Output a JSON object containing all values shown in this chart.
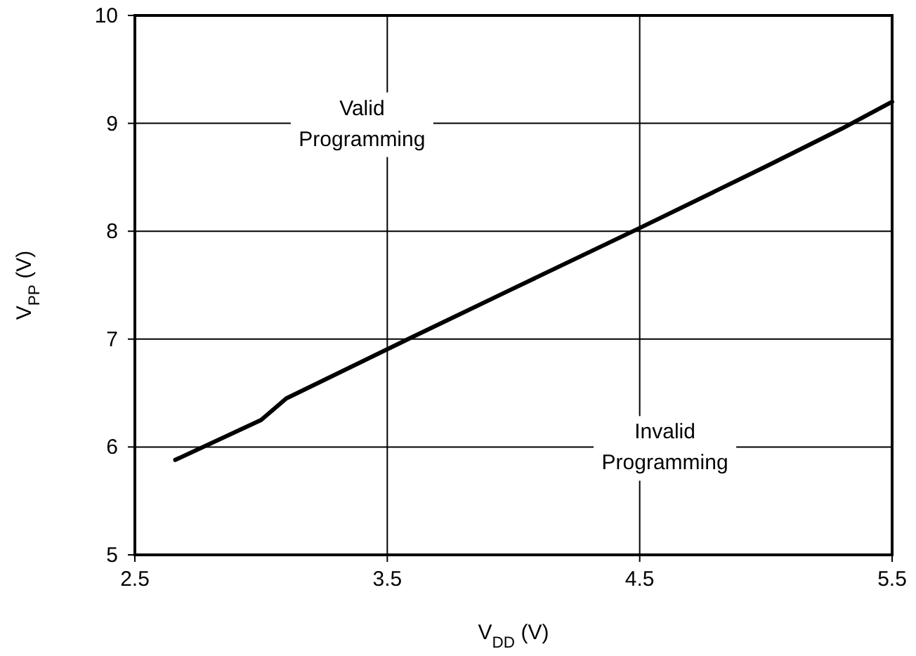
{
  "chart_data": {
    "type": "line",
    "xlabel": "V$_{DD}$ (V)",
    "ylabel": "V$_{PP}$ (V)",
    "xlim": [
      2.5,
      5.5
    ],
    "xticks": [
      2.5,
      3.5,
      4.5,
      5.5
    ],
    "ylim": [
      5,
      10
    ],
    "yticks": [
      5,
      6,
      7,
      8,
      9,
      10
    ],
    "grid": true,
    "x": [
      2.66,
      3.0,
      3.1,
      3.6,
      4.0,
      4.5,
      5.0,
      5.3,
      5.5
    ],
    "series": [
      {
        "color": "#000000",
        "values": [
          5.88,
          6.25,
          6.45,
          7.02,
          7.47,
          8.03,
          8.6,
          8.95,
          9.2
        ]
      }
    ],
    "annotations": [
      "Valid\nProgramming",
      "Invalid\nProgramming"
    ]
  }
}
